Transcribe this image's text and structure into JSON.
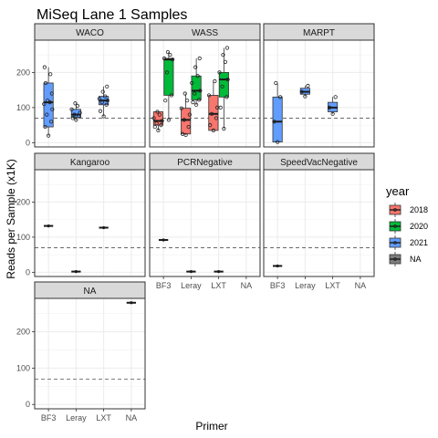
{
  "chart_data": {
    "type": "box",
    "title": "MiSeq Lane 1 Samples",
    "xlabel": "Primer",
    "ylabel": "Reads per Sample (x1K)",
    "categories": [
      "BF3",
      "Leray",
      "LXT",
      "NA"
    ],
    "yticks": [
      0,
      100,
      200
    ],
    "ylim": [
      -12,
      292
    ],
    "reference_line": 70,
    "legend": {
      "title": "year",
      "placement": "right",
      "entries": [
        {
          "label": "2018",
          "color": "#F8766D"
        },
        {
          "label": "2020",
          "color": "#00BA38"
        },
        {
          "label": "2021",
          "color": "#619CFF"
        },
        {
          "label": "NA",
          "color": "#7F7F7F"
        }
      ]
    },
    "panels": [
      {
        "name": "WACO",
        "boxes": [
          {
            "category": "BF3",
            "year": "2021",
            "min": 20,
            "q1": 45,
            "median": 115,
            "q3": 170,
            "max": 215,
            "points": [
              20,
              45,
              60,
              80,
              95,
              110,
              115,
              120,
              140,
              170,
              195,
              215
            ]
          },
          {
            "category": "Leray",
            "year": "2021",
            "min": 65,
            "q1": 72,
            "median": 80,
            "q3": 95,
            "max": 112,
            "points": [
              65,
              70,
              75,
              80,
              85,
              95,
              105,
              112
            ]
          },
          {
            "category": "LXT",
            "year": "2021",
            "min": 75,
            "q1": 108,
            "median": 120,
            "q3": 132,
            "max": 160,
            "points": [
              75,
              90,
              108,
              115,
              120,
              125,
              132,
              145,
              160
            ]
          }
        ]
      },
      {
        "name": "WASS",
        "boxes": [
          {
            "category": "BF3",
            "year": "2018",
            "min": 35,
            "q1": 50,
            "median": 62,
            "q3": 88,
            "max": 88,
            "points": [
              35,
              45,
              50,
              55,
              62,
              70,
              80,
              88
            ]
          },
          {
            "category": "BF3",
            "year": "2020",
            "min": 65,
            "q1": 135,
            "median": 237,
            "q3": 240,
            "max": 258,
            "points": [
              65,
              120,
              135,
              200,
              237,
              240,
              250,
              258
            ]
          },
          {
            "category": "Leray",
            "year": "2018",
            "min": 22,
            "q1": 25,
            "median": 65,
            "q3": 98,
            "max": 140,
            "points": [
              22,
              25,
              45,
              65,
              80,
              98,
              120,
              140
            ]
          },
          {
            "category": "Leray",
            "year": "2020",
            "min": 108,
            "q1": 122,
            "median": 148,
            "q3": 190,
            "max": 240,
            "points": [
              108,
              115,
              122,
              140,
              148,
              170,
              190,
              215,
              240
            ]
          },
          {
            "category": "LXT",
            "year": "2018",
            "min": 35,
            "q1": 35,
            "median": 82,
            "q3": 135,
            "max": 175,
            "points": [
              35,
              50,
              70,
              82,
              100,
              135,
              175
            ]
          },
          {
            "category": "LXT",
            "year": "2020",
            "min": 40,
            "q1": 130,
            "median": 180,
            "q3": 200,
            "max": 270,
            "points": [
              40,
              100,
              130,
              160,
              180,
              200,
              230,
              250,
              270
            ]
          }
        ]
      },
      {
        "name": "MARPT",
        "boxes": [
          {
            "category": "BF3",
            "year": "2021",
            "min": 2,
            "q1": 2,
            "median": 60,
            "q3": 130,
            "max": 170,
            "points": [
              2,
              60,
              130,
              170
            ]
          },
          {
            "category": "Leray",
            "year": "2021",
            "min": 132,
            "q1": 138,
            "median": 145,
            "q3": 155,
            "max": 162,
            "points": [
              132,
              145,
              162
            ]
          },
          {
            "category": "LXT",
            "year": "2021",
            "min": 82,
            "q1": 88,
            "median": 100,
            "q3": 115,
            "max": 130,
            "points": [
              82,
              100,
              130
            ]
          }
        ]
      },
      {
        "name": "Kangaroo",
        "boxes": [
          {
            "category": "BF3",
            "year": "2021",
            "min": 132,
            "q1": 132,
            "median": 132,
            "q3": 132,
            "max": 132,
            "points": []
          },
          {
            "category": "Leray",
            "year": "2021",
            "min": 2,
            "q1": 2,
            "median": 2,
            "q3": 2,
            "max": 2,
            "points": []
          },
          {
            "category": "LXT",
            "year": "2021",
            "min": 127,
            "q1": 127,
            "median": 127,
            "q3": 127,
            "max": 127,
            "points": []
          }
        ]
      },
      {
        "name": "PCRNegative",
        "boxes": [
          {
            "category": "BF3",
            "year": "2021",
            "min": 92,
            "q1": 92,
            "median": 92,
            "q3": 92,
            "max": 92,
            "points": []
          },
          {
            "category": "Leray",
            "year": "2021",
            "min": 2,
            "q1": 2,
            "median": 2,
            "q3": 2,
            "max": 2,
            "points": []
          },
          {
            "category": "LXT",
            "year": "2021",
            "min": 2,
            "q1": 2,
            "median": 2,
            "q3": 2,
            "max": 2,
            "points": []
          }
        ]
      },
      {
        "name": "SpeedVacNegative",
        "boxes": [
          {
            "category": "BF3",
            "year": "2021",
            "min": 18,
            "q1": 18,
            "median": 18,
            "q3": 18,
            "max": 18,
            "points": []
          }
        ]
      },
      {
        "name": "NA",
        "boxes": [
          {
            "category": "NA",
            "year": "NA",
            "min": 280,
            "q1": 280,
            "median": 280,
            "q3": 280,
            "max": 280,
            "points": []
          }
        ]
      }
    ]
  }
}
